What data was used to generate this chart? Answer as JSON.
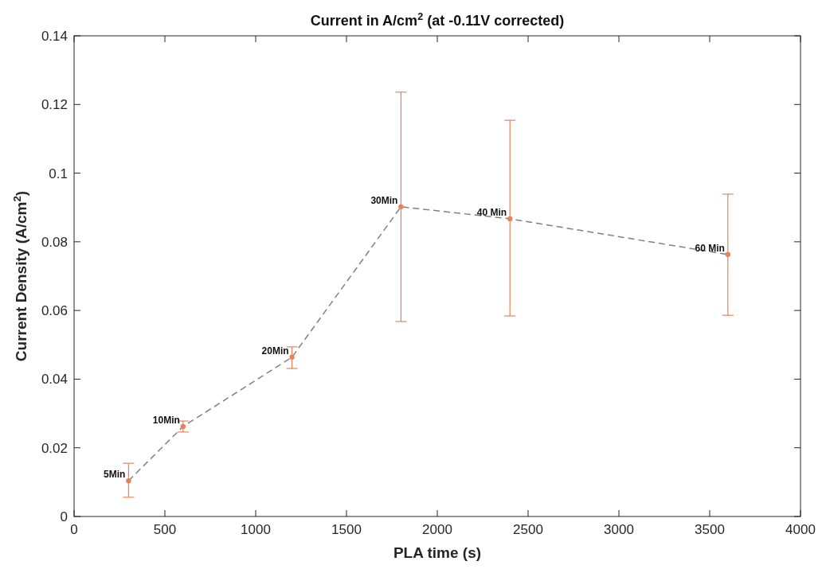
{
  "chart_data": {
    "type": "line",
    "title": "Current in A/cm$^{2}$ (at -0.11V corrected)",
    "xlabel": "PLA time (s)",
    "ylabel": "Current Density (A/cm$^{2}$)",
    "x": [
      300,
      600,
      1200,
      1800,
      2400,
      3600
    ],
    "series": [
      {
        "color": "#808080",
        "colors": [
          "#e8825a",
          "#e8825a",
          "#e8825a",
          "#e8825a",
          "#e8825a",
          "#e8825a"
        ],
        "values": [
          0.0104,
          0.0262,
          0.0464,
          0.0902,
          0.0867,
          0.0763
        ],
        "errors": [
          [
            0.0056,
            0.0155
          ],
          [
            0.0246,
            0.0278
          ],
          [
            0.0431,
            0.0494
          ],
          [
            0.0568,
            0.1236
          ],
          [
            0.0584,
            0.1154
          ],
          [
            0.0586,
            0.0939
          ]
        ]
      }
    ],
    "annotations": [
      {
        "text": "5Min",
        "x": 300,
        "y": 0.0104
      },
      {
        "text": "10Min",
        "x": 600,
        "y": 0.0262
      },
      {
        "text": "20Min",
        "x": 1200,
        "y": 0.0464
      },
      {
        "text": "30Min",
        "x": 1800,
        "y": 0.0902
      },
      {
        "text": "40 Min",
        "x": 2400,
        "y": 0.0867
      },
      {
        "text": "60 Min",
        "x": 3600,
        "y": 0.0763
      }
    ],
    "xlim": [
      0,
      4000
    ],
    "xticks": [
      0,
      500,
      1000,
      1500,
      2000,
      2500,
      3000,
      3500,
      4000
    ],
    "ylim": [
      0,
      0.14
    ],
    "yticks": [
      0,
      0.02,
      0.04,
      0.06,
      0.08,
      0.1,
      0.12,
      0.14
    ],
    "grid": false,
    "marker": "circle",
    "line_style": "dashed"
  }
}
